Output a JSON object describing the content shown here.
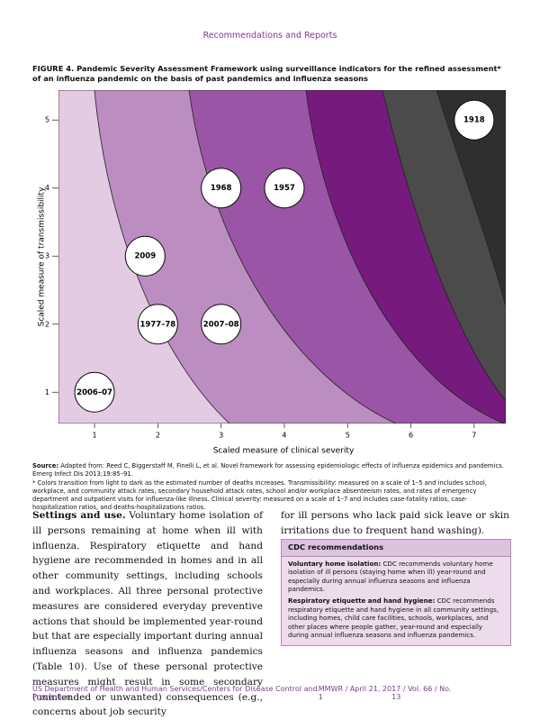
{
  "header": "Recommendations and Reports",
  "figure": {
    "label": "FIGURE 4.",
    "text": "Pandemic Severity Assessment Framework using surveillance indicators for the refined assessment* of an influenza pandemic on the basis of past pandemics and influenza seasons"
  },
  "chart_data": {
    "type": "scatter",
    "xlabel": "Scaled measure of clinical severity",
    "ylabel": "Scaled measure of transmissibility",
    "x": [
      1,
      2,
      3,
      1.8,
      3,
      4,
      7
    ],
    "values": [
      1,
      2,
      2,
      3,
      4,
      4,
      5
    ],
    "labels": [
      "2006–07",
      "1977–78",
      "2007–08",
      "2009",
      "1968",
      "1957",
      "1918"
    ],
    "xlim": [
      0.43,
      7.5
    ],
    "ylim": [
      0.54,
      5.44
    ],
    "xticks": [
      1,
      2,
      3,
      4,
      5,
      6,
      7
    ],
    "yticks": [
      1,
      2,
      3,
      4,
      5
    ]
  },
  "source": {
    "label": "Source:",
    "text": "Adapted from: Reed C, Biggerstaff M, Finelli L, et al. Novel framework for assessing epidemiologic effects of influenza epidemics and pandemics. Emerg Infect Dis 2013;19:85–91."
  },
  "footnote": "* Colors transition from light to dark as the estimated number of deaths increases. Transmissibility: measured on a scale of 1–5 and includes school, workplace, and community attack rates, secondary household attack rates, school and/or workplace absenteeism rates, and rates of emergency department and outpatient visits for influenza-like illness. Clinical severity: measured on a scale of 1–7 and includes case-fatality ratios, case-hospitalization ratios, and deaths-hospitalizations ratios.",
  "body": {
    "lead": "Settings and use.",
    "left": "Voluntary home isolation of ill persons remaining at home when ill with influenza. Respiratory etiquette and hand hygiene are recommended in homes and in all other community settings, including schools and workplaces. All three personal protective measures are considered everyday preventive actions that should be implemented year-round but that are especially important during annual influenza seasons and influenza pandemics (Table 10). Use of these personal protective measures might result in some secondary (unintended or unwanted) consequences (e.g., concerns about job security",
    "right": "for ill persons who lack paid sick leave or skin irritations due to frequent hand washing)."
  },
  "box": {
    "title": "CDC recommendations",
    "items": [
      {
        "label": "Voluntary home isolation:",
        "text": "CDC recommends voluntary home isolation of ill persons (staying home when ill) year-round and especially during annual influenza seasons and influenza pandemics."
      },
      {
        "label": "Respiratory etiquette and hand hygiene:",
        "text": "CDC recommends respiratory etiquette and hand hygiene in all community settings, including homes, child care facilities, schools, workplaces, and other places where people gather, year-round and especially during annual influenza seasons and influenza pandemics."
      }
    ]
  },
  "footer": {
    "left": "US Department of Health and Human Services/Centers for Disease Control and Prevention",
    "right": "MMWR / April 21, 2017 / Vol. 66 / No. 1",
    "page": "13"
  }
}
